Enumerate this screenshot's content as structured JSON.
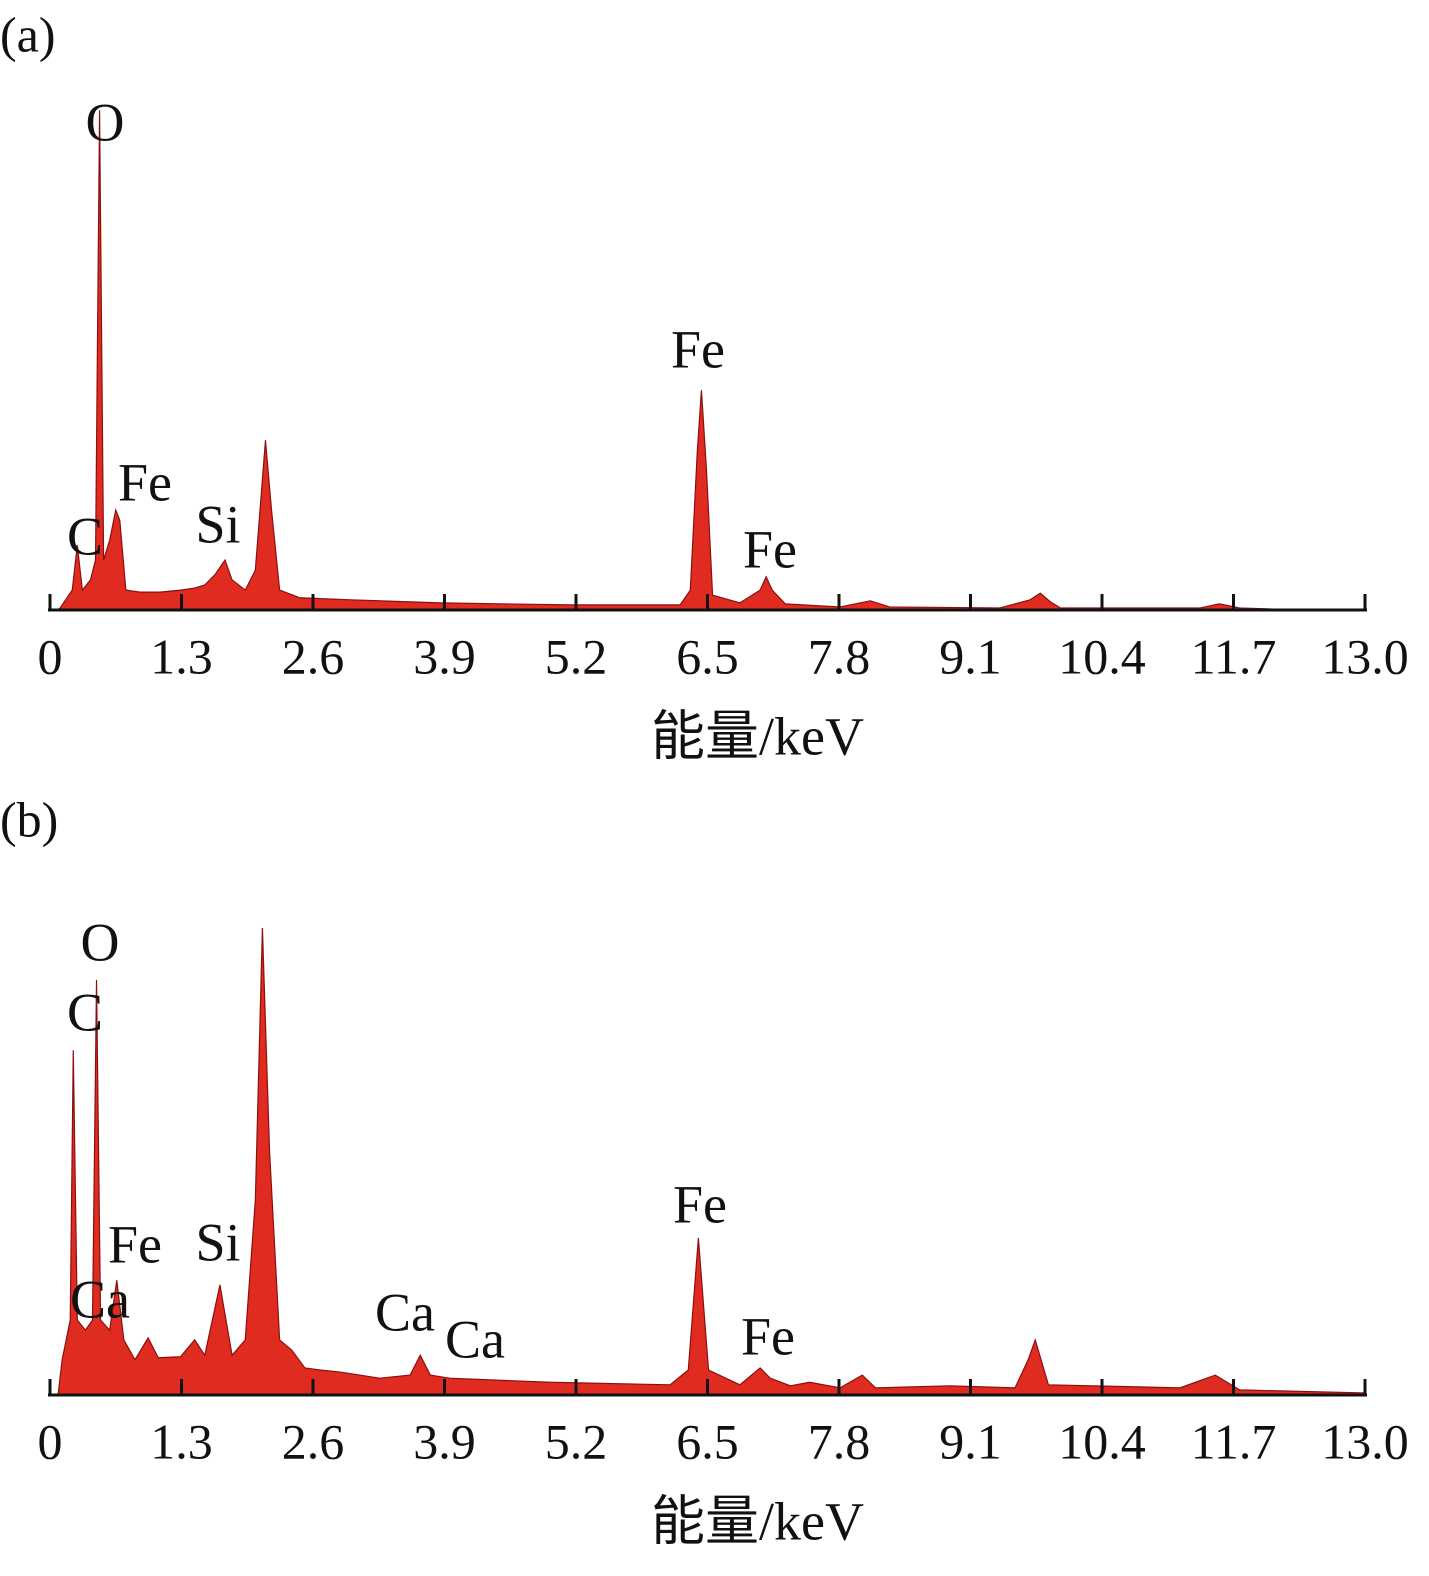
{
  "chart_data": [
    {
      "type": "area",
      "title": "(a)",
      "x_label": "能量/keV",
      "color": "#e02b20",
      "xlim": [
        0,
        13
      ],
      "ylim": [
        0,
        100
      ],
      "xticks": [
        0,
        1.3,
        2.6,
        3.9,
        5.2,
        6.5,
        7.8,
        9.1,
        10.4,
        11.7,
        {
          "value": 13,
          "label": "13.0"
        }
      ],
      "annotations": [
        "O",
        "C",
        "Fe",
        "Si",
        "Fe",
        "Fe"
      ],
      "x": [
        0.08,
        0.1,
        0.22,
        0.27,
        0.32,
        0.4,
        0.45,
        0.49,
        0.53,
        0.59,
        0.65,
        0.69,
        0.75,
        0.89,
        1.09,
        1.29,
        1.43,
        1.53,
        1.63,
        1.73,
        1.8,
        1.93,
        2.03,
        2.13,
        2.19,
        2.27,
        2.47,
        2.97,
        3.86,
        5.14,
        6.23,
        6.33,
        6.4,
        6.44,
        6.49,
        6.55,
        6.82,
        7.02,
        7.08,
        7.14,
        7.27,
        7.81,
        8.11,
        8.3,
        9.39,
        9.69,
        9.79,
        9.89,
        9.99,
        11.37,
        11.56,
        11.76,
        12.36
      ],
      "values": [
        0,
        0.4,
        3.9,
        12.7,
        3.9,
        5.9,
        9.8,
        98.0,
        9.8,
        13.7,
        19.6,
        17.6,
        3.9,
        3.5,
        3.5,
        3.9,
        4.3,
        4.9,
        6.9,
        9.8,
        5.9,
        3.9,
        7.8,
        33.3,
        19.6,
        3.9,
        2.4,
        2.0,
        1.4,
        1.0,
        1.0,
        3.9,
        31.4,
        43.1,
        27.5,
        2.9,
        1.4,
        3.9,
        6.5,
        3.9,
        1.2,
        0.6,
        1.8,
        0.6,
        0.4,
        2.0,
        3.3,
        1.6,
        0.4,
        0.4,
        1.2,
        0.4,
        0
      ]
    },
    {
      "type": "area",
      "title": "(b)",
      "x_label": "能量/keV",
      "color": "#e02b20",
      "xlim": [
        0,
        13
      ],
      "ylim": [
        0,
        100
      ],
      "xticks": [
        0,
        1.3,
        2.6,
        3.9,
        5.2,
        6.5,
        7.8,
        9.1,
        10.4,
        11.7,
        {
          "value": 13,
          "label": "13.0"
        }
      ],
      "annotations": [
        "O",
        "C",
        "Fe",
        "Ca",
        "Si",
        "Ca",
        "Ca",
        "Fe",
        "Fe"
      ],
      "x": [
        0.08,
        0.12,
        0.2,
        0.23,
        0.27,
        0.35,
        0.42,
        0.46,
        0.5,
        0.59,
        0.66,
        0.73,
        0.84,
        0.97,
        1.07,
        1.29,
        1.43,
        1.53,
        1.68,
        1.8,
        1.93,
        2.03,
        2.1,
        2.17,
        2.27,
        2.39,
        2.52,
        2.67,
        2.87,
        3.26,
        3.56,
        3.66,
        3.76,
        3.95,
        4.94,
        6.13,
        6.31,
        6.41,
        6.51,
        6.82,
        7.02,
        7.12,
        7.32,
        7.51,
        7.81,
        8.03,
        8.16,
        8.9,
        9.54,
        9.67,
        9.74,
        9.87,
        11.17,
        11.52,
        11.76,
        13.0
      ],
      "values": [
        0,
        6.9,
        14.7,
        67.6,
        14.7,
        12.7,
        14.7,
        81.4,
        14.7,
        12.7,
        22.5,
        10.8,
        6.9,
        11.2,
        7.3,
        7.5,
        10.8,
        7.8,
        21.6,
        7.8,
        10.8,
        38.2,
        91.6,
        48.0,
        10.8,
        8.8,
        5.3,
        4.9,
        4.5,
        3.3,
        3.9,
        7.8,
        3.9,
        3.3,
        2.5,
        2.0,
        4.9,
        30.8,
        4.9,
        2.0,
        5.3,
        3.3,
        1.8,
        2.5,
        1.4,
        3.9,
        1.4,
        1.8,
        1.4,
        6.9,
        10.8,
        2.0,
        1.4,
        3.9,
        1.0,
        0.4
      ]
    }
  ]
}
